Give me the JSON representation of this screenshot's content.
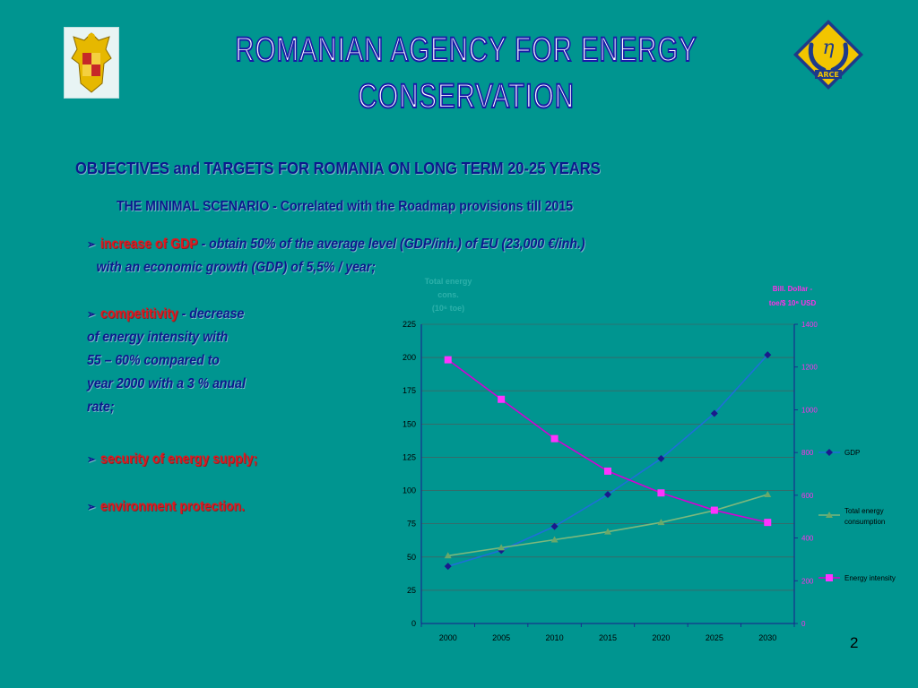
{
  "header": {
    "agency_title": "ROMANIAN AGENCY FOR ENERGY CONSERVATION",
    "logo_symbol": "η",
    "logo_text": "ARCE"
  },
  "content": {
    "title": "OBJECTIVES and TARGETS FOR ROMANIA ON LONG TERM 20-25 YEARS",
    "subtitle": "THE MINIMAL SCENARIO - Correlated with the Roadmap provisions till 2015",
    "bullets": {
      "gdp_keyword": "increase of GDP",
      "gdp_text_1": " - obtain 50% of the average level (GDP/inh.) of EU (23,000 €/inh.)",
      "gdp_text_2": "with an economic growth (GDP) of 5,5% / year;",
      "comp_keyword": "competitivity",
      "comp_dash": " - ",
      "comp_text_1": "decrease",
      "comp_text_2": "of energy intensity with",
      "comp_text_3": "55 – 60% compared to",
      "comp_text_4": "year 2000 with a 3 % anual",
      "comp_text_5": "rate;",
      "security": "security of energy supply;",
      "environment": "environment protection."
    },
    "page_number": "2"
  },
  "chart_data": {
    "type": "line",
    "x": [
      "2000",
      "2005",
      "2010",
      "2015",
      "2020",
      "2025",
      "2030"
    ],
    "left_axis": {
      "label_line1": "Total energy",
      "label_line2": "cons.",
      "label_line3": "(10⁶ toe)",
      "ylim": [
        0,
        225
      ],
      "ticks": [
        "0",
        "25",
        "50",
        "75",
        "100",
        "125",
        "150",
        "175",
        "200",
        "225"
      ]
    },
    "right_axis": {
      "label_line1": "Bill. Dollar -",
      "label_line2": "toe/$ 10⁶ USD",
      "ylim": [
        0,
        1400
      ],
      "ticks": [
        "0",
        "200",
        "400",
        "600",
        "800",
        "1000",
        "1200",
        "1400"
      ]
    },
    "series": [
      {
        "name": "GDP",
        "axis": "left",
        "color": "#1e6fd9",
        "marker": "diamond",
        "marker_color": "#1a1a8c",
        "values": [
          43,
          55,
          73,
          97,
          124,
          158,
          202
        ]
      },
      {
        "name": "Total energy consumption",
        "axis": "left",
        "color": "#7cb87c",
        "marker": "triangle",
        "marker_color": "#6aa86a",
        "values": [
          51,
          57,
          63,
          69,
          76,
          85,
          97
        ]
      },
      {
        "name": "Energy intensity",
        "axis": "right",
        "color": "#d400d4",
        "marker": "square",
        "marker_color": "#ff33ff",
        "values": [
          1234,
          1049,
          865,
          713,
          611,
          530,
          473
        ]
      }
    ],
    "legend": [
      {
        "label": "GDP"
      },
      {
        "label_line1": "Total energy",
        "label_line2": "consumption"
      },
      {
        "label": "Energy intensity"
      }
    ],
    "legend_position": "right",
    "grid": true
  }
}
